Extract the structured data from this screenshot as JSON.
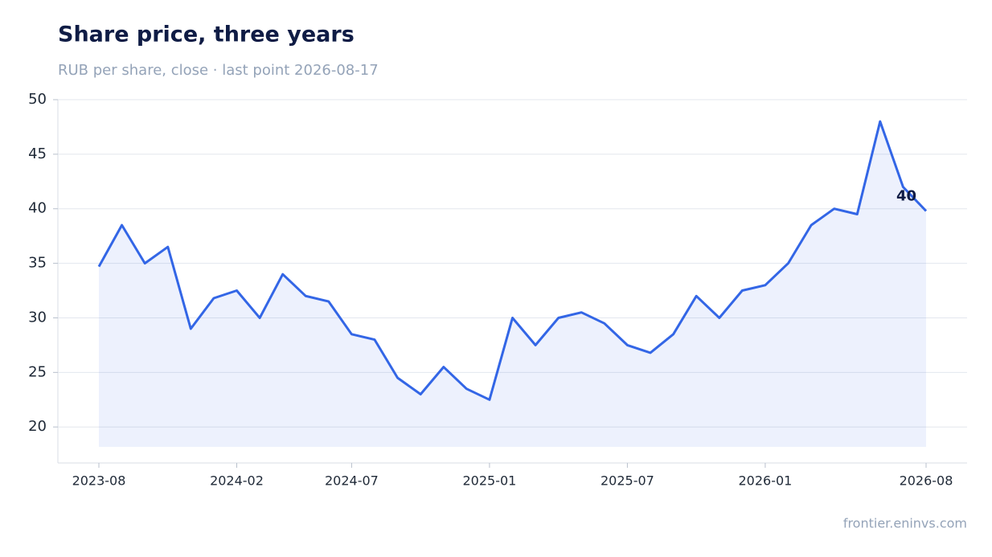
{
  "chart_data": {
    "type": "line",
    "title": "Share price, three years",
    "subtitle": "RUB per share, close · last point 2026-08-17",
    "footer": "frontier.eninvs.com",
    "x": [
      "2023-08",
      "2023-09",
      "2023-10",
      "2023-11",
      "2023-12",
      "2024-01",
      "2024-02",
      "2024-03",
      "2024-04",
      "2024-05",
      "2024-06",
      "2024-07",
      "2024-08",
      "2024-09",
      "2024-10",
      "2024-11",
      "2024-12",
      "2025-01",
      "2025-02",
      "2025-03",
      "2025-04",
      "2025-05",
      "2025-06",
      "2025-07",
      "2025-08",
      "2025-09",
      "2025-10",
      "2025-11",
      "2025-12",
      "2026-01",
      "2026-02",
      "2026-03",
      "2026-04",
      "2026-05",
      "2026-06",
      "2026-07",
      "2026-08"
    ],
    "series": [
      {
        "name": "Share price",
        "color": "#3366e6",
        "values": [
          34.7,
          38.5,
          35,
          36.5,
          29,
          31.8,
          32.5,
          30,
          34,
          32,
          31.5,
          28.5,
          28,
          24.5,
          23,
          25.5,
          23.5,
          22.5,
          30,
          27.5,
          30,
          30.5,
          29.5,
          27.5,
          26.8,
          28.5,
          32,
          30,
          32.5,
          33,
          35,
          38.5,
          40,
          39.5,
          48,
          42,
          39.8
        ],
        "value_labels": [
          null,
          null,
          null,
          null,
          null,
          null,
          null,
          null,
          null,
          null,
          null,
          null,
          null,
          null,
          null,
          null,
          null,
          null,
          null,
          null,
          null,
          null,
          null,
          null,
          null,
          null,
          null,
          null,
          null,
          null,
          null,
          null,
          null,
          null,
          null,
          null,
          "40"
        ]
      }
    ],
    "xticks": [
      "2023-08",
      "2024-02",
      "2024-07",
      "2025-01",
      "2025-07",
      "2026-01",
      "2026-08"
    ],
    "ylim": [
      16.7,
      50
    ],
    "yticks": [
      20,
      25,
      30,
      35,
      40,
      45,
      50
    ],
    "grid": true
  }
}
